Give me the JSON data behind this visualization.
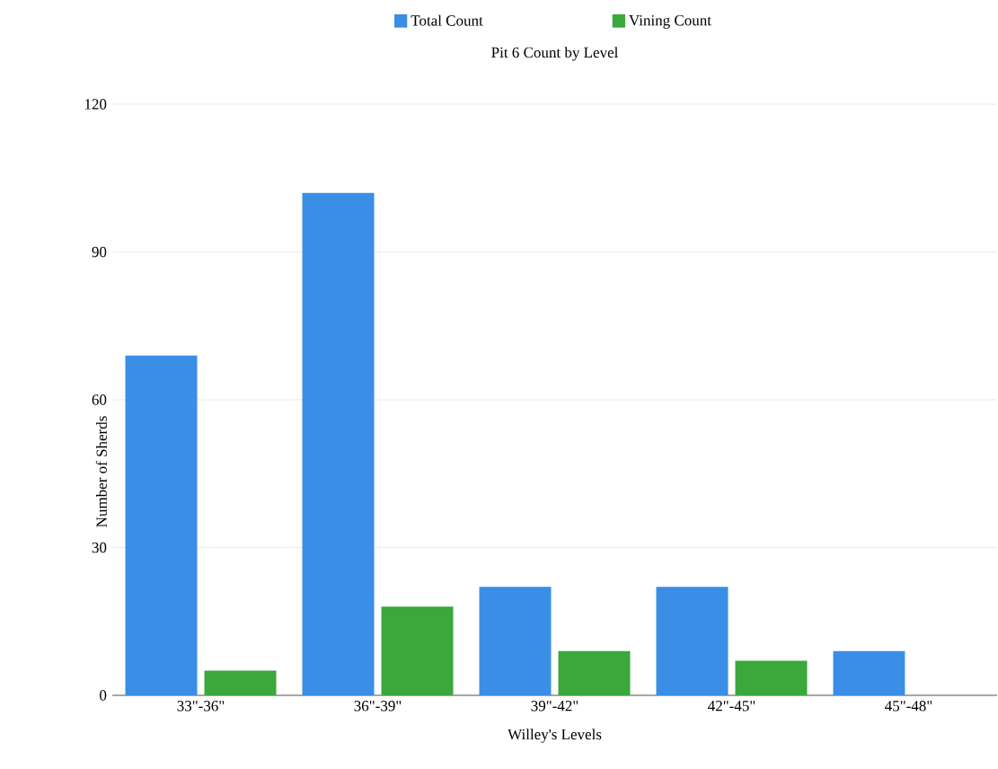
{
  "chart_data": {
    "type": "bar",
    "title": "Pit 6 Count by Level",
    "xlabel": "Willey's Levels",
    "ylabel": "Number of Sherds",
    "categories": [
      "33\"-36\"",
      "36\"-39\"",
      "39\"-42\"",
      "42\"-45\"",
      "45\"-48\""
    ],
    "series": [
      {
        "name": "Total Count",
        "color": "#3a8ee6",
        "values": [
          69,
          102,
          22,
          22,
          9
        ]
      },
      {
        "name": "Vining Count",
        "color": "#3aa83a",
        "values": [
          5,
          18,
          9,
          7,
          0
        ]
      }
    ],
    "ylim": [
      0,
      120
    ],
    "yticks": [
      0,
      30,
      60,
      90,
      120
    ],
    "grid": "y",
    "legend": "top"
  }
}
